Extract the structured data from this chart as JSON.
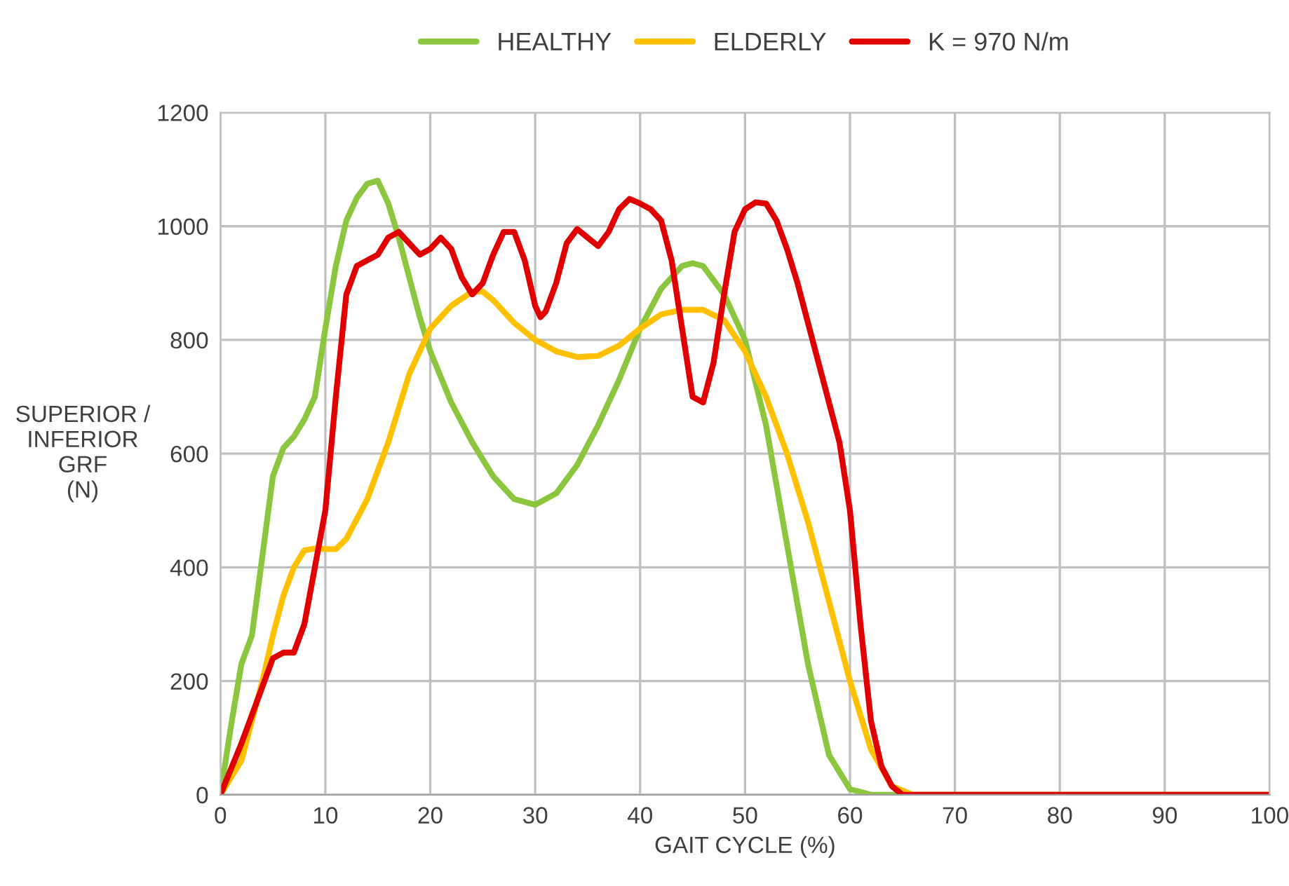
{
  "chart_data": {
    "type": "line",
    "xlabel": "GAIT CYCLE (%)",
    "ylabel": "SUPERIOR /\nINFERIOR\nGRF\n(N)",
    "xlim": [
      0,
      100
    ],
    "ylim": [
      0,
      1200
    ],
    "xticks": [
      0,
      10,
      20,
      30,
      40,
      50,
      60,
      70,
      80,
      90,
      100
    ],
    "yticks": [
      0,
      200,
      400,
      600,
      800,
      1000,
      1200
    ],
    "grid": true,
    "legend": "top",
    "marker": "none",
    "line_style": "solid",
    "series": [
      {
        "name": "HEALTHY",
        "color": "#8cc63f",
        "x": [
          0,
          1,
          2,
          3,
          4,
          5,
          6,
          7,
          8,
          9,
          10,
          11,
          12,
          13,
          14,
          15,
          16,
          17,
          18,
          19,
          20,
          22,
          24,
          26,
          28,
          30,
          32,
          34,
          36,
          38,
          40,
          42,
          44,
          45,
          46,
          48,
          50,
          52,
          54,
          56,
          58,
          60,
          62,
          100
        ],
        "values": [
          0,
          120,
          230,
          280,
          420,
          560,
          610,
          630,
          660,
          700,
          820,
          930,
          1010,
          1050,
          1075,
          1080,
          1040,
          980,
          910,
          840,
          780,
          690,
          620,
          560,
          520,
          510,
          530,
          580,
          650,
          730,
          820,
          890,
          930,
          935,
          930,
          880,
          800,
          650,
          440,
          230,
          70,
          10,
          0,
          0
        ]
      },
      {
        "name": "ELDERLY",
        "color": "#ffc000",
        "x": [
          0,
          2,
          4,
          5,
          6,
          7,
          8,
          9,
          10,
          11,
          12,
          14,
          16,
          18,
          20,
          22,
          24,
          25,
          26,
          28,
          30,
          32,
          34,
          36,
          38,
          40,
          42,
          44,
          46,
          48,
          50,
          52,
          54,
          56,
          58,
          60,
          62,
          64,
          66,
          100
        ],
        "values": [
          0,
          60,
          200,
          280,
          350,
          400,
          430,
          433,
          432,
          432,
          450,
          520,
          620,
          740,
          820,
          860,
          885,
          885,
          870,
          830,
          800,
          780,
          770,
          772,
          790,
          820,
          845,
          853,
          853,
          835,
          780,
          700,
          600,
          480,
          340,
          200,
          80,
          15,
          0,
          0
        ]
      },
      {
        "name": "K = 970 N/m",
        "color": "#e00000",
        "x": [
          0,
          2,
          4,
          5,
          6,
          7,
          8,
          9,
          10,
          11,
          12,
          13,
          14,
          15,
          16,
          17,
          18,
          19,
          20,
          21,
          22,
          23,
          24,
          25,
          26,
          27,
          28,
          29,
          30,
          30.5,
          31,
          32,
          33,
          34,
          35,
          36,
          37,
          38,
          39,
          40,
          41,
          42,
          43,
          44,
          45,
          46,
          47,
          48,
          49,
          50,
          51,
          52,
          53,
          54,
          55,
          56,
          57,
          58,
          59,
          60,
          61,
          62,
          63,
          64,
          65,
          100
        ],
        "values": [
          0,
          90,
          190,
          240,
          250,
          250,
          300,
          400,
          500,
          700,
          880,
          930,
          940,
          950,
          980,
          990,
          970,
          950,
          960,
          980,
          960,
          910,
          880,
          900,
          950,
          990,
          990,
          940,
          860,
          840,
          850,
          900,
          970,
          995,
          980,
          965,
          990,
          1030,
          1048,
          1040,
          1030,
          1010,
          940,
          820,
          700,
          690,
          760,
          880,
          990,
          1030,
          1042,
          1040,
          1010,
          960,
          900,
          830,
          760,
          690,
          620,
          500,
          300,
          130,
          50,
          15,
          0,
          0
        ]
      }
    ]
  }
}
